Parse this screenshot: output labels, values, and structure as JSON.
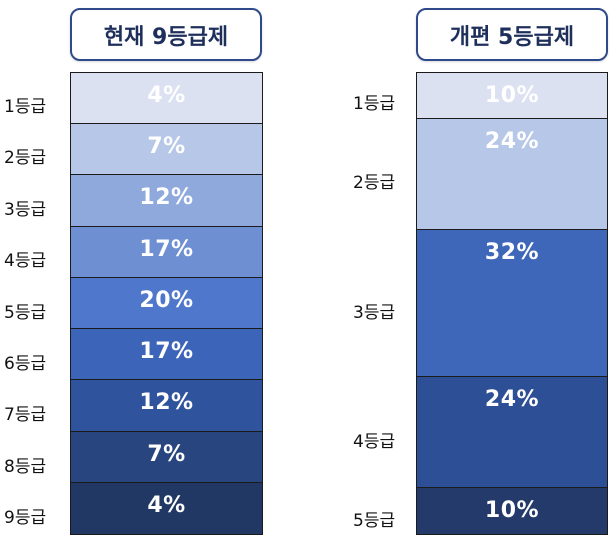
{
  "left": {
    "title": "현재 9등급제",
    "grades": [
      {
        "label": "1등급",
        "pct": "4%",
        "value": 4,
        "color": "#dbe1f1"
      },
      {
        "label": "2등급",
        "pct": "7%",
        "value": 7,
        "color": "#b6c7e7"
      },
      {
        "label": "3등급",
        "pct": "12%",
        "value": 12,
        "color": "#8fa9dc"
      },
      {
        "label": "4등급",
        "pct": "17%",
        "value": 17,
        "color": "#6e90d3"
      },
      {
        "label": "5등급",
        "pct": "20%",
        "value": 20,
        "color": "#4f78cc"
      },
      {
        "label": "6등급",
        "pct": "17%",
        "value": 17,
        "color": "#3c65b9"
      },
      {
        "label": "7등급",
        "pct": "12%",
        "value": 12,
        "color": "#2f539c"
      },
      {
        "label": "8등급",
        "pct": "7%",
        "value": 7,
        "color": "#28457f"
      },
      {
        "label": "9등급",
        "pct": "4%",
        "value": 4,
        "color": "#213764"
      }
    ]
  },
  "right": {
    "title": "개편 5등급제",
    "grades": [
      {
        "label": "1등급",
        "pct": "10%",
        "value": 10,
        "color": "#dbe1f1"
      },
      {
        "label": "2등급",
        "pct": "24%",
        "value": 24,
        "color": "#b6c7e7"
      },
      {
        "label": "3등급",
        "pct": "32%",
        "value": 32,
        "color": "#3e66b9"
      },
      {
        "label": "4등급",
        "pct": "24%",
        "value": 24,
        "color": "#2d4f95"
      },
      {
        "label": "5등급",
        "pct": "10%",
        "value": 10,
        "color": "#233a6a"
      }
    ]
  }
}
